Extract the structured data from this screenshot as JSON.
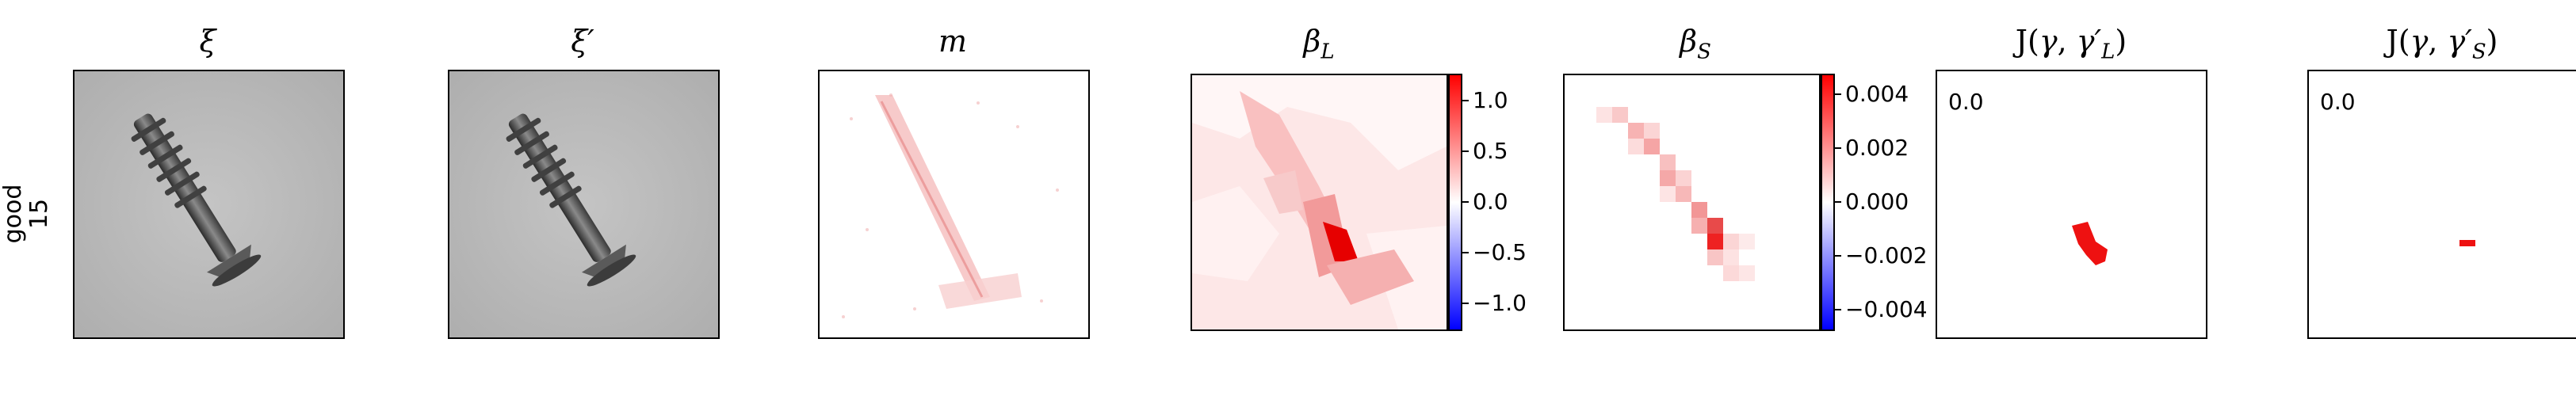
{
  "row_label": [
    "good",
    "15"
  ],
  "panels": [
    {
      "title": "ξ",
      "kind": "image"
    },
    {
      "title": "ξ′",
      "kind": "image"
    },
    {
      "title": "m",
      "kind": "map"
    },
    {
      "title": "β_L",
      "kind": "map"
    },
    {
      "title": "β_S",
      "kind": "map"
    },
    {
      "title": "J(γ, γ′_L)",
      "kind": "mask"
    },
    {
      "title": "J(γ, γ′_S)",
      "kind": "mask"
    }
  ],
  "beta_L_colorbar": {
    "ticks": [
      "1.0",
      "0.5",
      "0.0",
      "−0.5",
      "−1.0"
    ]
  },
  "beta_S_colorbar": {
    "ticks": [
      "0.004",
      "0.002",
      "0.000",
      "−0.002",
      "−0.004"
    ]
  },
  "mask_L_value": "0.0",
  "mask_S_value": "0.0",
  "colors": {
    "positive": "#ff0000",
    "negative": "#0000ff",
    "neutral": "#ffffff"
  }
}
